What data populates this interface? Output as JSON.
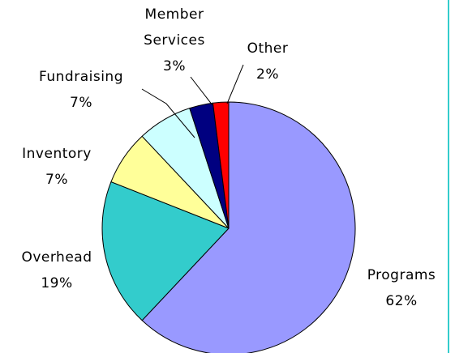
{
  "chart_data": {
    "type": "pie",
    "categories": [
      "Programs",
      "Overhead",
      "Inventory",
      "Fundraising",
      "Member Services",
      "Other"
    ],
    "values": [
      62,
      19,
      7,
      7,
      3,
      2
    ],
    "value_labels": [
      "62%",
      "19%",
      "7%",
      "7%",
      "3%",
      "2%"
    ],
    "colors": [
      "#9999ff",
      "#33cccc",
      "#ffff99",
      "#ccffff",
      "#000080",
      "#ff0000"
    ]
  }
}
